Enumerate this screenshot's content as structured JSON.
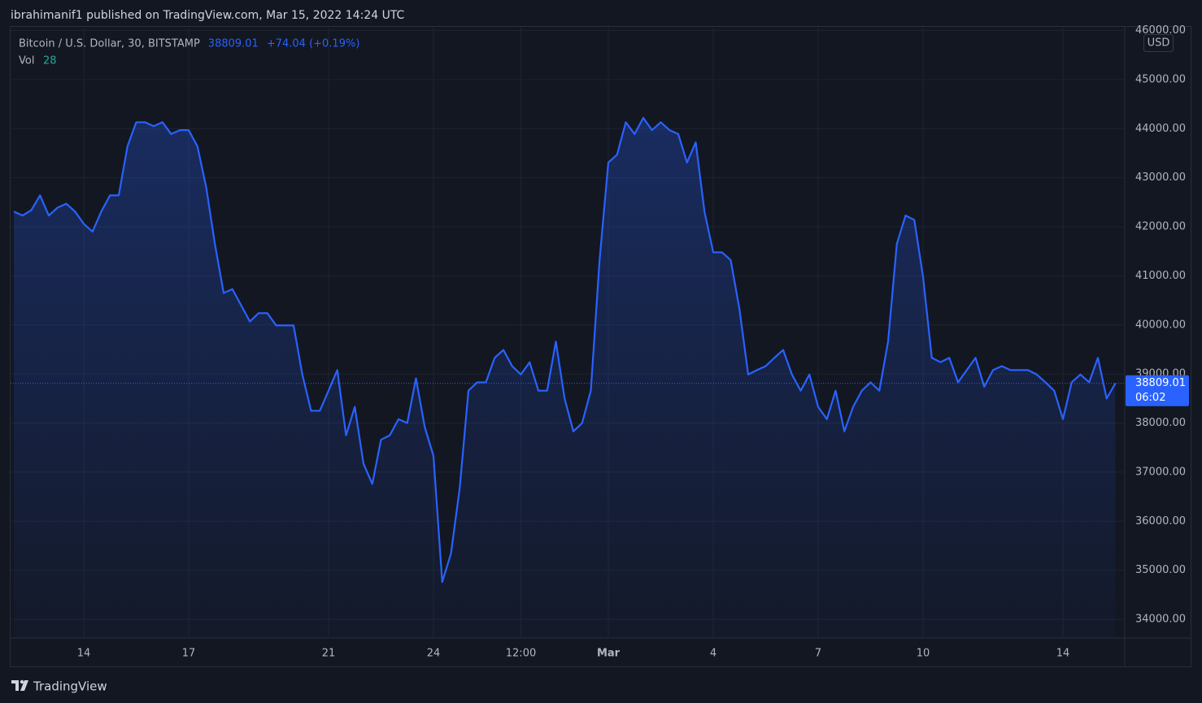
{
  "header": {
    "text": "ibrahimanif1 published on TradingView.com, Mar 15, 2022 14:24 UTC"
  },
  "chart_data": {
    "type": "area",
    "series": [
      {
        "name": "Bitcoin / U.S. Dollar, 30, BITSTAMP",
        "color": "#2962ff",
        "values": [
          42310,
          42230,
          42340,
          42640,
          42230,
          42390,
          42470,
          42310,
          42060,
          41900,
          42310,
          42640,
          42640,
          43640,
          44130,
          44130,
          44050,
          44130,
          43890,
          43970,
          43970,
          43640,
          42810,
          41650,
          40650,
          40730,
          40400,
          40070,
          40240,
          40240,
          39990,
          39990,
          39990,
          38990,
          38250,
          38250,
          38660,
          39080,
          37750,
          38330,
          37170,
          36760,
          37660,
          37750,
          38080,
          38000,
          38910,
          37920,
          37330,
          34760,
          35340,
          36670,
          38660,
          38830,
          38830,
          39330,
          39490,
          39160,
          38990,
          39240,
          38660,
          38660,
          39660,
          38500,
          37830,
          38000,
          38660,
          41320,
          43310,
          43470,
          44130,
          43890,
          44220,
          43970,
          44130,
          43970,
          43890,
          43310,
          43720,
          42310,
          41480,
          41480,
          41320,
          40320,
          38990,
          39080,
          39160,
          39330,
          39490,
          38990,
          38660,
          38990,
          38330,
          38080,
          38660,
          37830,
          38330,
          38660,
          38830,
          38660,
          39660,
          41650,
          42230,
          42140,
          40980,
          39330,
          39240,
          39330,
          38830,
          39080,
          39330,
          38740,
          39080,
          39160,
          39080,
          39080,
          39080,
          38990,
          38830,
          38660,
          38080,
          38830,
          38990,
          38830,
          39330,
          38500,
          38809.01
        ]
      }
    ],
    "categories": [
      null,
      null,
      null,
      null,
      null,
      null,
      null,
      null,
      "14",
      null,
      null,
      null,
      null,
      null,
      null,
      null,
      null,
      null,
      null,
      null,
      "17",
      null,
      null,
      null,
      null,
      null,
      null,
      null,
      null,
      null,
      null,
      null,
      null,
      null,
      null,
      null,
      "21",
      null,
      null,
      null,
      null,
      null,
      null,
      null,
      null,
      null,
      null,
      null,
      "24",
      null,
      null,
      null,
      null,
      null,
      null,
      null,
      null,
      null,
      "12:00",
      null,
      null,
      null,
      null,
      null,
      null,
      null,
      null,
      null,
      "Mar",
      null,
      null,
      null,
      null,
      null,
      null,
      null,
      null,
      null,
      null,
      null,
      "4",
      null,
      null,
      null,
      null,
      null,
      null,
      null,
      null,
      null,
      null,
      null,
      "7",
      null,
      null,
      null,
      null,
      null,
      null,
      null,
      null,
      null,
      null,
      null,
      "10",
      null,
      null,
      null,
      null,
      null,
      null,
      null,
      null,
      null,
      null,
      null,
      null,
      null,
      null,
      null,
      "14",
      null,
      null,
      null,
      null,
      null,
      null
    ],
    "change": "+74.04 (+0.19%)",
    "volume_label": "Vol",
    "volume": 28,
    "currency": "USD",
    "countdown": "06:02",
    "ylim": [
      33620,
      46075
    ],
    "yticks": [
      {
        "value": 34000,
        "label": "34000.00"
      },
      {
        "value": 35000,
        "label": "35000.00"
      },
      {
        "value": 36000,
        "label": "36000.00"
      },
      {
        "value": 37000,
        "label": "37000.00"
      },
      {
        "value": 38000,
        "label": "38000.00"
      },
      {
        "value": 39000,
        "label": "39000.00"
      },
      {
        "value": 40000,
        "label": "40000.00"
      },
      {
        "value": 41000,
        "label": "41000.00"
      },
      {
        "value": 42000,
        "label": "42000.00"
      },
      {
        "value": 43000,
        "label": "43000.00"
      },
      {
        "value": 44000,
        "label": "44000.00"
      },
      {
        "value": 45000,
        "label": "45000.00"
      },
      {
        "value": 46000,
        "label": "46000.00"
      }
    ],
    "grid": true
  },
  "footer": {
    "brand": "TradingView"
  }
}
